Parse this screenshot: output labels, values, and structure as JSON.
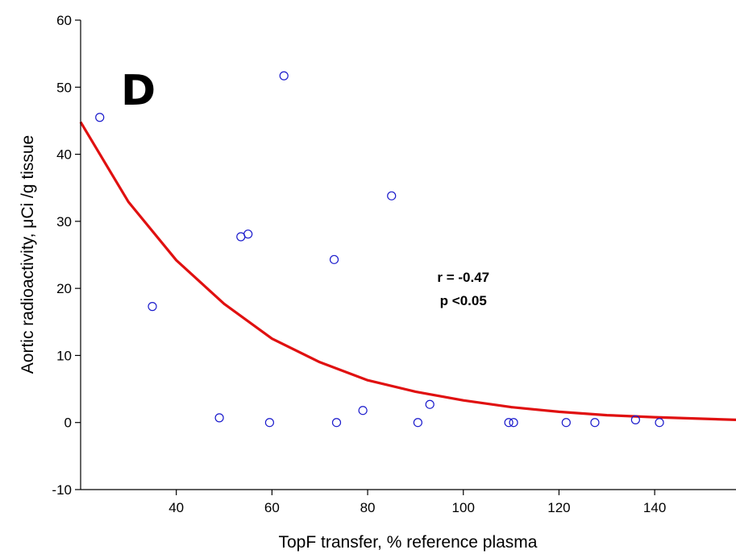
{
  "chart_data": {
    "type": "scatter",
    "title": "",
    "xlabel": "TopF transfer, % reference plasma",
    "ylabel": "Aortic radioactivity, μCi /g tissue",
    "panel_label": "D",
    "xlim": [
      20,
      157
    ],
    "ylim": [
      -10,
      60
    ],
    "x_ticks": [
      40,
      60,
      80,
      100,
      120,
      140
    ],
    "y_ticks": [
      -10,
      0,
      10,
      20,
      30,
      40,
      50,
      60
    ],
    "grid": false,
    "legend": "none",
    "series": [
      {
        "points": [
          {
            "x": 24,
            "y": 45.5
          },
          {
            "x": 35,
            "y": 17.3
          },
          {
            "x": 49,
            "y": 0.7
          },
          {
            "x": 53.5,
            "y": 27.7
          },
          {
            "x": 55,
            "y": 28.1
          },
          {
            "x": 59.5,
            "y": 0
          },
          {
            "x": 62.5,
            "y": 51.7
          },
          {
            "x": 73,
            "y": 24.3
          },
          {
            "x": 73.5,
            "y": 0
          },
          {
            "x": 79,
            "y": 1.8
          },
          {
            "x": 85,
            "y": 33.8
          },
          {
            "x": 90.5,
            "y": 0
          },
          {
            "x": 93,
            "y": 2.7
          },
          {
            "x": 109.5,
            "y": 0
          },
          {
            "x": 110.5,
            "y": 0
          },
          {
            "x": 121.5,
            "y": 0
          },
          {
            "x": 127.5,
            "y": 0
          },
          {
            "x": 136,
            "y": 0.4
          },
          {
            "x": 141,
            "y": 0
          }
        ],
        "color": "#1a1acc"
      }
    ],
    "fit_curve": {
      "type": "exponential",
      "points": [
        {
          "x": 20,
          "y": 44.8
        },
        {
          "x": 30,
          "y": 32.9
        },
        {
          "x": 40,
          "y": 24.2
        },
        {
          "x": 50,
          "y": 17.7
        },
        {
          "x": 60,
          "y": 12.5
        },
        {
          "x": 70,
          "y": 9.0
        },
        {
          "x": 80,
          "y": 6.3
        },
        {
          "x": 90,
          "y": 4.6
        },
        {
          "x": 100,
          "y": 3.3
        },
        {
          "x": 110,
          "y": 2.3
        },
        {
          "x": 120,
          "y": 1.6
        },
        {
          "x": 130,
          "y": 1.1
        },
        {
          "x": 140,
          "y": 0.8
        },
        {
          "x": 157,
          "y": 0.4
        }
      ],
      "color": "#e01010"
    },
    "annotations": [
      {
        "text": "r = -0.47",
        "x": 100,
        "y": 21
      },
      {
        "text": "p <0.05",
        "x": 100,
        "y": 17.5
      }
    ]
  }
}
